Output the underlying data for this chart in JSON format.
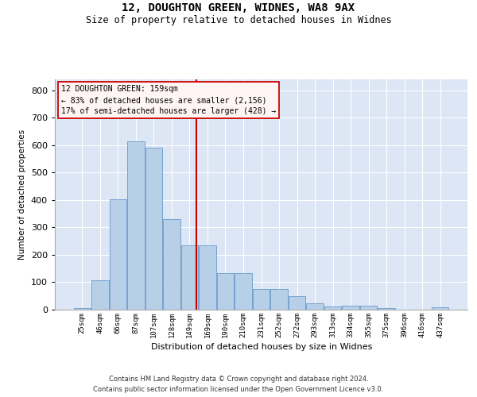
{
  "title1": "12, DOUGHTON GREEN, WIDNES, WA8 9AX",
  "title2": "Size of property relative to detached houses in Widnes",
  "xlabel": "Distribution of detached houses by size in Widnes",
  "ylabel": "Number of detached properties",
  "categories": [
    "25sqm",
    "46sqm",
    "66sqm",
    "87sqm",
    "107sqm",
    "128sqm",
    "149sqm",
    "169sqm",
    "190sqm",
    "210sqm",
    "231sqm",
    "252sqm",
    "272sqm",
    "293sqm",
    "313sqm",
    "334sqm",
    "355sqm",
    "375sqm",
    "396sqm",
    "416sqm",
    "437sqm"
  ],
  "values": [
    5,
    107,
    403,
    614,
    592,
    330,
    235,
    235,
    133,
    133,
    75,
    75,
    48,
    22,
    13,
    14,
    14,
    6,
    1,
    0,
    8
  ],
  "bar_color": "#b8cfe8",
  "bar_edge_color": "#6899cc",
  "vline_color": "#cc0000",
  "vline_position": 6.38,
  "property_label": "12 DOUGHTON GREEN: 159sqm",
  "annotation_line1": "← 83% of detached houses are smaller (2,156)",
  "annotation_line2": "17% of semi-detached houses are larger (428) →",
  "ylim": [
    0,
    840
  ],
  "yticks": [
    0,
    100,
    200,
    300,
    400,
    500,
    600,
    700,
    800
  ],
  "grid_color": "#ffffff",
  "bg_color": "#dce6f5",
  "footer1": "Contains HM Land Registry data © Crown copyright and database right 2024.",
  "footer2": "Contains public sector information licensed under the Open Government Licence v3.0."
}
